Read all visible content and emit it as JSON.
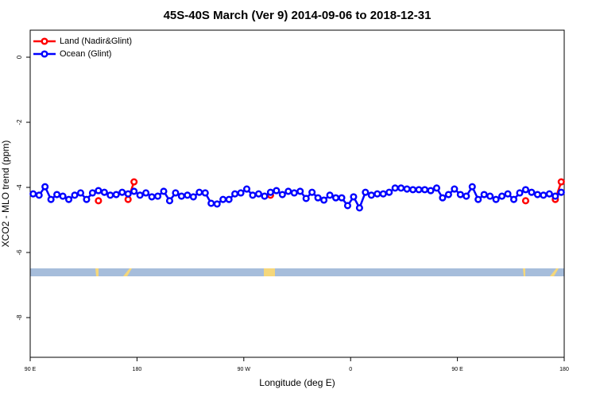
{
  "chart_data": {
    "type": "line",
    "title": "45S-40S March (Ver 9)   2014-09-06 to 2018-12-31",
    "x_label": "Longitude (deg E)",
    "y_label": "XCO2 - MLO trend (ppm)",
    "xlim": [
      90,
      540
    ],
    "ylim": [
      -9.22,
      0.83
    ],
    "xticks": [
      {
        "value": 90,
        "label": "90 E"
      },
      180,
      {
        "value": 270,
        "label": "90 W"
      },
      {
        "value": 360,
        "label": "0"
      },
      {
        "value": 450,
        "label": "90 E"
      },
      {
        "value": 540,
        "label": "180"
      }
    ],
    "yticks": [
      0,
      -2,
      -4,
      -6,
      -8
    ],
    "legend": "top-left",
    "series": [
      {
        "name": "Land (Nadir&Glint)",
        "color": "#ff0000",
        "x": [
          147.5,
          172.5,
          177.5,
          292.5,
          507.5,
          532.5,
          537.5
        ],
        "values": [
          -4.41,
          -4.37,
          -3.83,
          -4.24,
          -4.41,
          -4.37,
          -3.83
        ]
      },
      {
        "name": "Ocean (Glint)",
        "color": "#0000ff",
        "x": [
          92.5,
          97.5,
          102.5,
          107.5,
          112.5,
          117.5,
          122.5,
          127.5,
          132.5,
          137.5,
          142.5,
          147.5,
          152.5,
          157.5,
          162.5,
          167.5,
          172.5,
          177.5,
          182.5,
          187.5,
          192.5,
          197.5,
          202.5,
          207.5,
          212.5,
          217.5,
          222.5,
          227.5,
          232.5,
          237.5,
          242.5,
          247.5,
          252.5,
          257.5,
          262.5,
          267.5,
          272.5,
          277.5,
          282.5,
          287.5,
          292.5,
          297.5,
          302.5,
          307.5,
          312.5,
          317.5,
          322.5,
          327.5,
          332.5,
          337.5,
          342.5,
          347.5,
          352.5,
          357.5,
          362.5,
          367.5,
          372.5,
          377.5,
          382.5,
          387.5,
          392.5,
          397.5,
          402.5,
          407.5,
          412.5,
          417.5,
          422.5,
          427.5,
          432.5,
          437.5,
          442.5,
          447.5,
          452.5,
          457.5,
          462.5,
          467.5,
          472.5,
          477.5,
          482.5,
          487.5,
          492.5,
          497.5,
          502.5,
          507.5,
          512.5,
          517.5,
          522.5,
          527.5,
          532.5,
          537.5
        ],
        "values": [
          -4.2,
          -4.24,
          -3.98,
          -4.37,
          -4.22,
          -4.27,
          -4.37,
          -4.24,
          -4.17,
          -4.37,
          -4.17,
          -4.1,
          -4.15,
          -4.24,
          -4.22,
          -4.15,
          -4.2,
          -4.12,
          -4.24,
          -4.17,
          -4.29,
          -4.27,
          -4.12,
          -4.41,
          -4.17,
          -4.27,
          -4.24,
          -4.29,
          -4.15,
          -4.17,
          -4.49,
          -4.51,
          -4.37,
          -4.37,
          -4.2,
          -4.17,
          -4.05,
          -4.24,
          -4.2,
          -4.27,
          -4.15,
          -4.1,
          -4.22,
          -4.12,
          -4.17,
          -4.12,
          -4.34,
          -4.15,
          -4.32,
          -4.39,
          -4.24,
          -4.32,
          -4.32,
          -4.56,
          -4.29,
          -4.63,
          -4.15,
          -4.24,
          -4.2,
          -4.2,
          -4.15,
          -4.02,
          -4.02,
          -4.05,
          -4.07,
          -4.07,
          -4.07,
          -4.1,
          -4.02,
          -4.32,
          -4.22,
          -4.05,
          -4.22,
          -4.27,
          -3.98,
          -4.37,
          -4.22,
          -4.27,
          -4.37,
          -4.27,
          -4.2,
          -4.37,
          -4.17,
          -4.07,
          -4.15,
          -4.22,
          -4.24,
          -4.2,
          -4.27,
          -4.15
        ]
      }
    ]
  }
}
